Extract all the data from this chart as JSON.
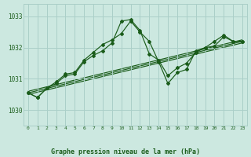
{
  "title": "Graphe pression niveau de la mer (hPa)",
  "bg_color": "#cce8e0",
  "grid_color": "#aacfc8",
  "line_color": "#1a5c1a",
  "xlim": [
    -0.5,
    23.5
  ],
  "ylim": [
    1029.5,
    1033.4
  ],
  "yticks": [
    1030,
    1031,
    1032,
    1033
  ],
  "xticks": [
    0,
    1,
    2,
    3,
    4,
    5,
    6,
    7,
    8,
    9,
    10,
    11,
    12,
    13,
    14,
    15,
    16,
    17,
    18,
    19,
    20,
    21,
    22,
    23
  ],
  "series1_x": [
    0,
    1,
    2,
    3,
    4,
    5,
    6,
    7,
    8,
    9,
    10,
    11,
    12,
    13,
    14,
    15,
    16,
    17,
    18,
    19,
    20,
    21,
    22,
    23
  ],
  "series1_y": [
    1030.55,
    1030.4,
    1030.7,
    1030.85,
    1031.1,
    1031.15,
    1031.55,
    1031.75,
    1031.9,
    1032.15,
    1032.85,
    1032.9,
    1032.55,
    1031.8,
    1031.6,
    1031.1,
    1031.35,
    1031.5,
    1031.85,
    1032.0,
    1032.05,
    1032.35,
    1032.2,
    1032.2
  ],
  "series2_x": [
    0,
    1,
    2,
    3,
    4,
    5,
    6,
    7,
    8,
    9,
    10,
    11,
    12,
    13,
    14,
    15,
    16,
    17,
    18,
    19,
    20,
    21,
    22,
    23
  ],
  "series2_y": [
    1030.55,
    1030.4,
    1030.7,
    1030.9,
    1031.15,
    1031.2,
    1031.6,
    1031.85,
    1032.1,
    1032.25,
    1032.45,
    1032.85,
    1032.5,
    1032.2,
    1031.55,
    1030.85,
    1031.2,
    1031.3,
    1031.9,
    1032.0,
    1032.2,
    1032.4,
    1032.2,
    1032.2
  ],
  "trend1_x": [
    0,
    23
  ],
  "trend1_y": [
    1030.5,
    1032.15
  ],
  "trend2_x": [
    0,
    23
  ],
  "trend2_y": [
    1030.55,
    1032.2
  ],
  "trend3_x": [
    0,
    23
  ],
  "trend3_y": [
    1030.6,
    1032.25
  ]
}
